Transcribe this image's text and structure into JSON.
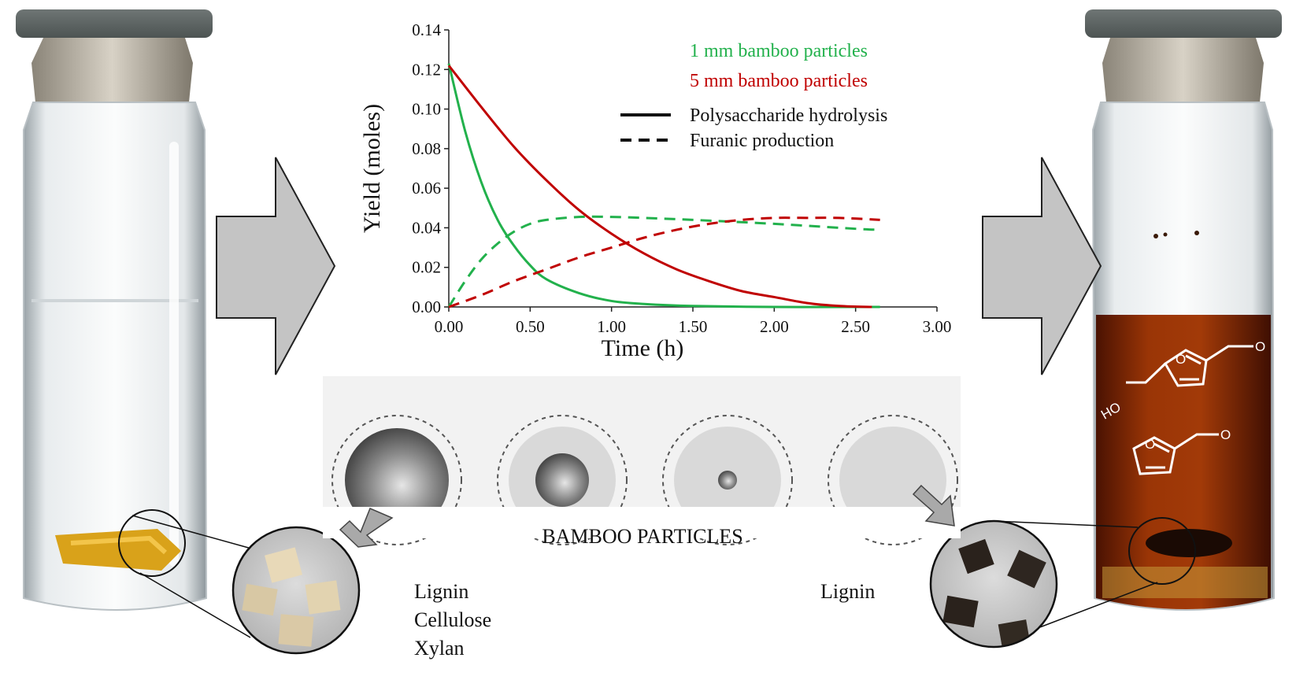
{
  "chart_data": {
    "type": "line",
    "xlabel": "Time (h)",
    "ylabel": "Yield (moles)",
    "xlim": [
      0,
      3
    ],
    "ylim": [
      0,
      0.14
    ],
    "x_ticks": [
      "0.00",
      "0.50",
      "1.00",
      "1.50",
      "2.00",
      "2.50",
      "3.00"
    ],
    "y_ticks": [
      "0.00",
      "0.02",
      "0.04",
      "0.06",
      "0.08",
      "0.10",
      "0.12",
      "0.14"
    ],
    "grid": false,
    "legend": {
      "placement": "top-right",
      "size_entries": [
        {
          "label": "1 mm bamboo particles",
          "color": "#22b14c"
        },
        {
          "label": "5 mm bamboo particles",
          "color": "#c00000"
        }
      ],
      "style_entries": [
        {
          "label": "Polysaccharide hydrolysis",
          "dash": "solid"
        },
        {
          "label": "Furanic production",
          "dash": "dashed"
        }
      ]
    },
    "series": [
      {
        "particle": "1 mm",
        "process": "Polysaccharide hydrolysis",
        "color": "#22b14c",
        "dash": "solid",
        "x": [
          0,
          0.1,
          0.2,
          0.3,
          0.4,
          0.5,
          0.6,
          0.8,
          1.0,
          1.2,
          1.5,
          2.0,
          2.5,
          2.65
        ],
        "y": [
          0.123,
          0.089,
          0.063,
          0.044,
          0.031,
          0.021,
          0.014,
          0.007,
          0.003,
          0.0015,
          0.0005,
          0.0,
          0.0,
          0.0
        ]
      },
      {
        "particle": "1 mm",
        "process": "Furanic production",
        "color": "#22b14c",
        "dash": "dashed",
        "x": [
          0,
          0.1,
          0.2,
          0.3,
          0.4,
          0.5,
          0.6,
          0.8,
          1.0,
          1.2,
          1.5,
          2.0,
          2.5,
          2.65
        ],
        "y": [
          0.0,
          0.013,
          0.024,
          0.032,
          0.038,
          0.042,
          0.044,
          0.0455,
          0.0455,
          0.045,
          0.044,
          0.042,
          0.0395,
          0.039
        ]
      },
      {
        "particle": "5 mm",
        "process": "Polysaccharide hydrolysis",
        "color": "#c00000",
        "dash": "solid",
        "x": [
          0,
          0.2,
          0.4,
          0.6,
          0.8,
          1.0,
          1.2,
          1.4,
          1.6,
          1.8,
          2.0,
          2.2,
          2.4,
          2.6
        ],
        "y": [
          0.122,
          0.101,
          0.081,
          0.064,
          0.049,
          0.037,
          0.027,
          0.019,
          0.013,
          0.008,
          0.005,
          0.002,
          0.0005,
          0.0
        ]
      },
      {
        "particle": "5 mm",
        "process": "Furanic production",
        "color": "#c00000",
        "dash": "dashed",
        "x": [
          0,
          0.2,
          0.4,
          0.6,
          0.8,
          1.0,
          1.2,
          1.4,
          1.6,
          1.8,
          2.0,
          2.2,
          2.4,
          2.65
        ],
        "y": [
          0.0,
          0.006,
          0.013,
          0.019,
          0.025,
          0.03,
          0.035,
          0.039,
          0.042,
          0.044,
          0.045,
          0.045,
          0.045,
          0.044
        ]
      }
    ]
  },
  "diagram": {
    "particles_label": "BAMBOO PARTICLES",
    "before_components": [
      "Lignin",
      "Cellulose",
      "Xylan"
    ],
    "after_components": [
      "Lignin"
    ],
    "molecule_labels": {
      "hmf_oxygen": "O",
      "hmf_aldehyde": "O",
      "hmf_hydroxyl": "HO",
      "furfural_oxygen": "O",
      "furfural_aldehyde": "O"
    }
  },
  "colors": {
    "green": "#22b14c",
    "red": "#c00000",
    "arrow": "#c4c4c4",
    "liquid_after": "#8a2a08"
  }
}
